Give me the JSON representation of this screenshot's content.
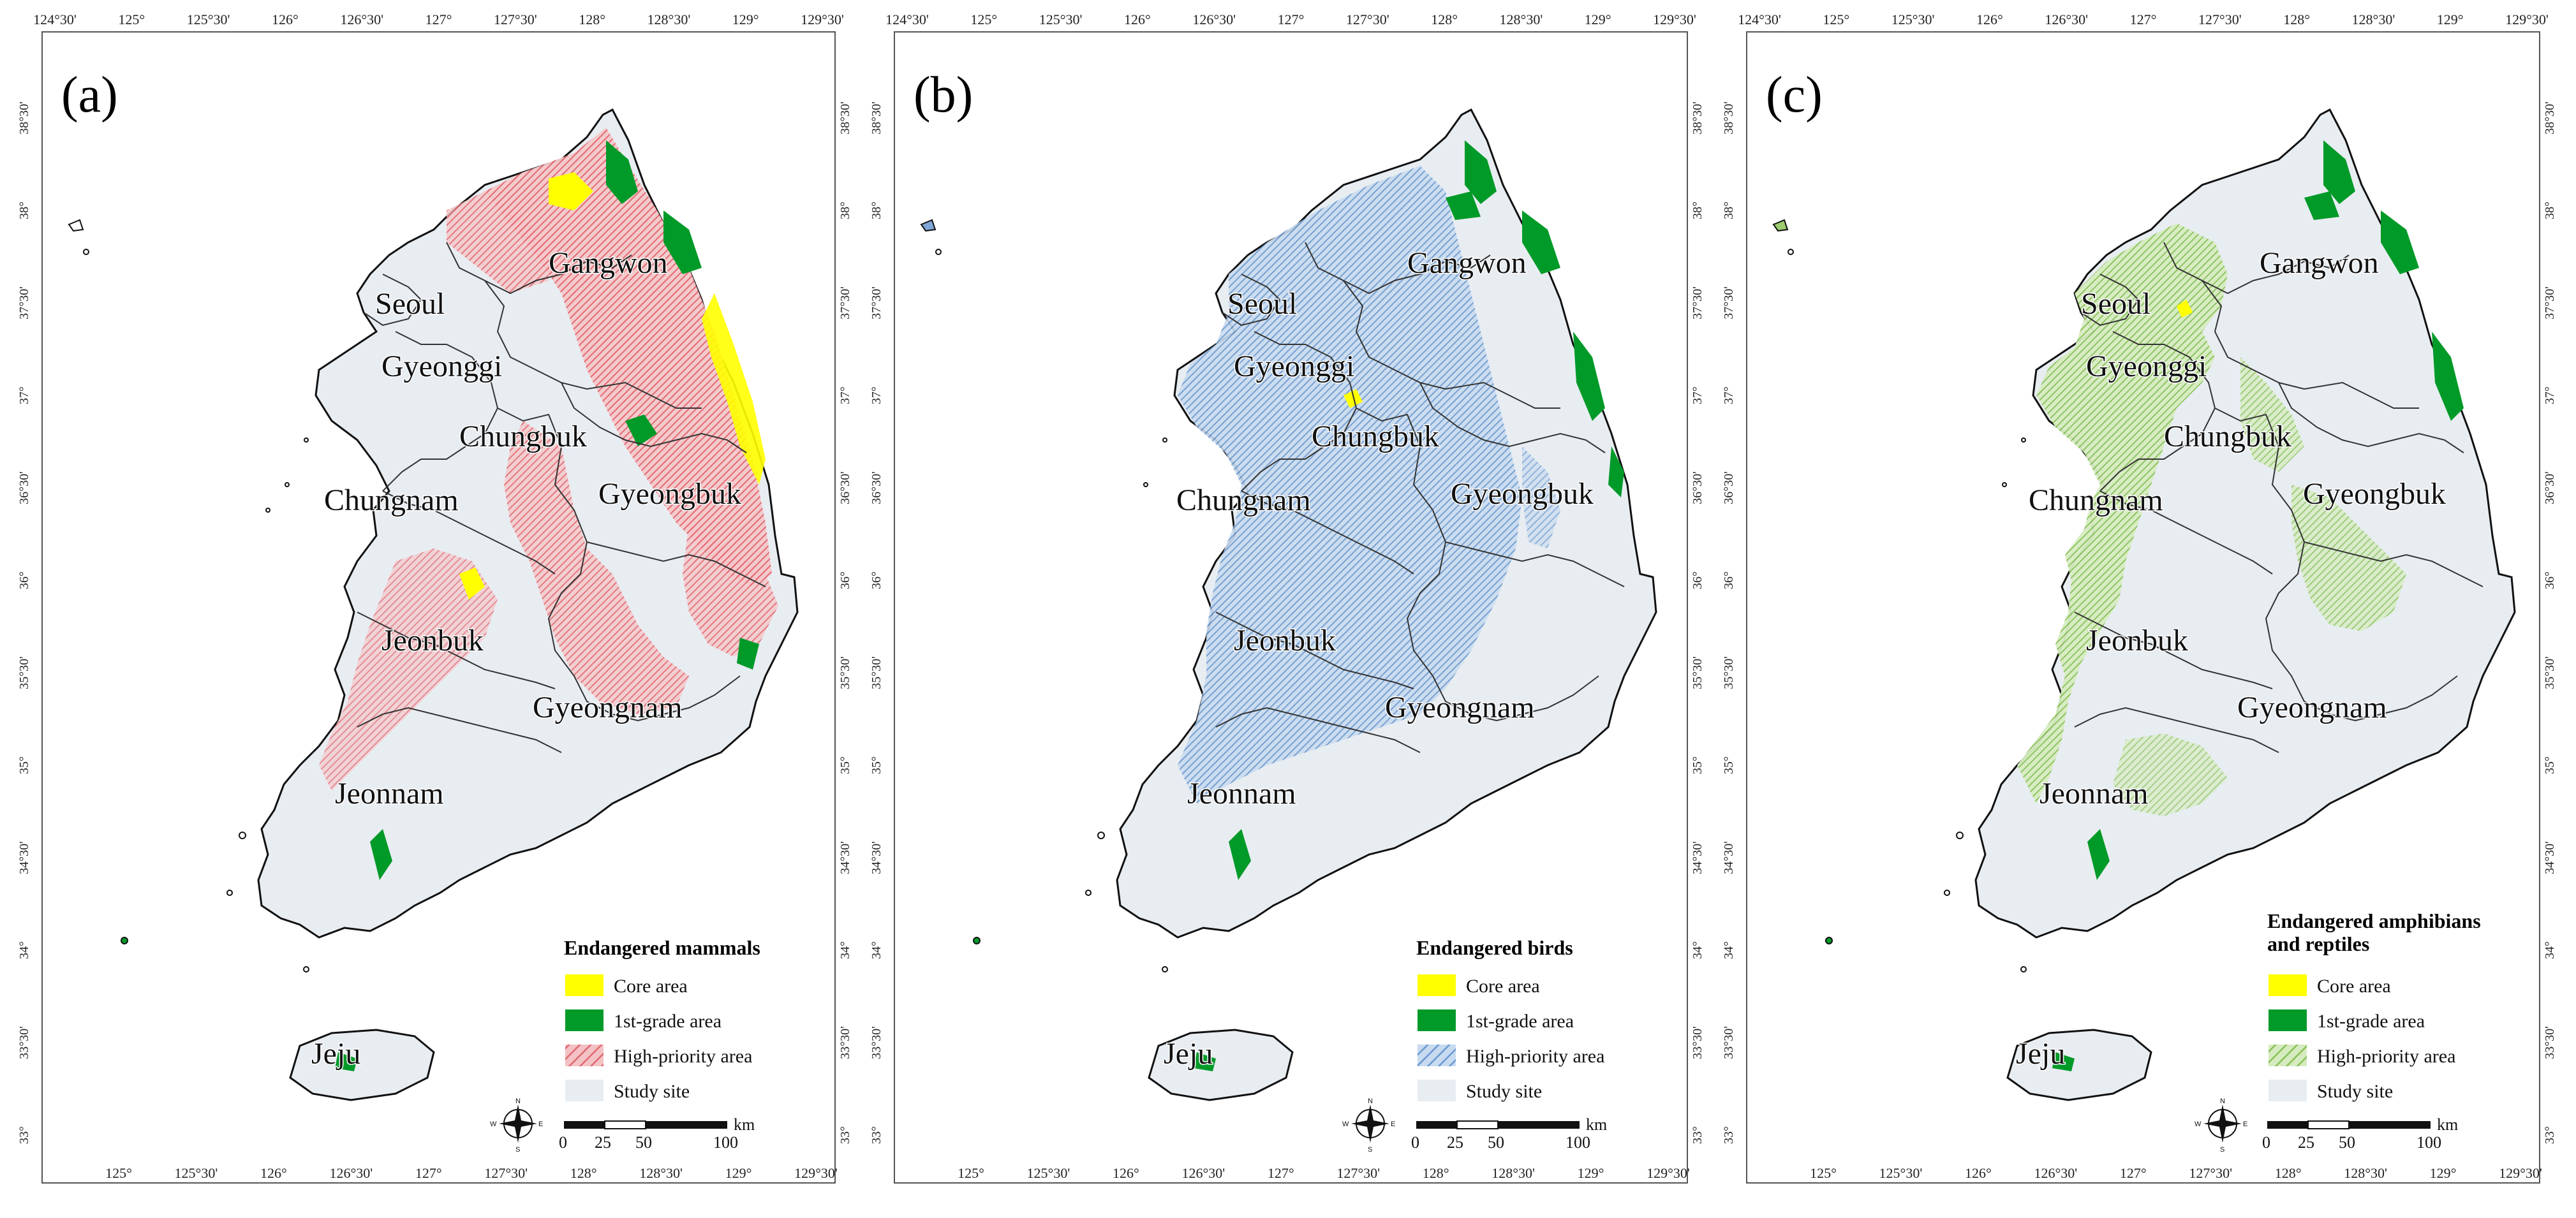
{
  "colors": {
    "core": "#ffff00",
    "first_grade": "#009a28",
    "study_site": "#e8edf2",
    "mammals_hatch": "#ee8a8e",
    "birds_hatch": "#7ea6d6",
    "amph_hatch": "#9ccc6e",
    "frame": "#555555",
    "boundary": "#1a1a1a"
  },
  "axes": {
    "top_ticks": [
      "124°30'",
      "125°",
      "125°30'",
      "126°",
      "126°30'",
      "127°",
      "127°30'",
      "128°",
      "128°30'",
      "129°",
      "129°30'"
    ],
    "bottom_ticks": [
      "125°",
      "125°30'",
      "126°",
      "126°30'",
      "127°",
      "127°30'",
      "128°",
      "128°30'",
      "129°",
      "129°30'"
    ],
    "side_ticks": [
      "38°30'",
      "38°",
      "37°30'",
      "37°",
      "36°30'",
      "36°",
      "35°30'",
      "35°",
      "34°30'",
      "34°",
      "33°30'",
      "33°"
    ]
  },
  "regions": {
    "seoul": "Seoul",
    "gyeonggi": "Gyeonggi",
    "gangwon": "Gangwon",
    "chungbuk": "Chungbuk",
    "chungnam": "Chungnam",
    "gyeongbuk": "Gyeongbuk",
    "jeonbuk": "Jeonbuk",
    "gyeongnam": "Gyeongnam",
    "jeonnam": "Jeonnam",
    "jeju": "Jeju"
  },
  "legend_common": {
    "core": "Core area",
    "first_grade": "1st-grade area",
    "high_priority": "High-priority area",
    "study_site": "Study site"
  },
  "scale": {
    "ticks": [
      "0",
      "25",
      "50",
      "100"
    ],
    "unit": "km"
  },
  "compass": {
    "n": "N",
    "s": "S",
    "e": "E",
    "w": "W"
  },
  "panels": [
    {
      "label": "(a)",
      "legend_title": "Endangered mammals",
      "legend_title_2": ""
    },
    {
      "label": "(b)",
      "legend_title": "Endangered birds",
      "legend_title_2": ""
    },
    {
      "label": "(c)",
      "legend_title": "Endangered amphibians",
      "legend_title_2": "and reptiles"
    }
  ]
}
